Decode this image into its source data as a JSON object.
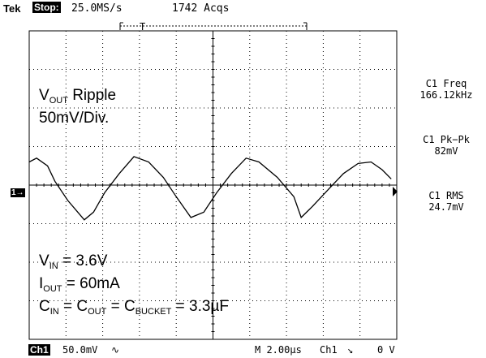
{
  "header": {
    "brand": "Tek",
    "run_state": "Stop:",
    "sample_rate": "25.0MS/s",
    "acquisitions": "1742 Acqs",
    "trigger_marker": "T"
  },
  "annotations": {
    "ripple_v": "V",
    "ripple_sub": "OUT",
    "ripple_text": " Ripple",
    "scale": "50mV/Div.",
    "vin_v": "V",
    "vin_sub": "IN",
    "vin_value": " = 3.6V",
    "iout_i": "I",
    "iout_sub": "OUT",
    "iout_value": " = 60mA",
    "cap_c1": "C",
    "cap_sub1": "IN",
    "cap_eq1": " = C",
    "cap_sub2": "OUT",
    "cap_eq2": " = C",
    "cap_sub3": "BUCKET",
    "cap_value": " = 3.3µF"
  },
  "measurements": [
    {
      "label": "C1 Freq",
      "value": "166.12kHz"
    },
    {
      "label": "C1 Pk−Pk",
      "value": "82mV"
    },
    {
      "label": "C1 RMS",
      "value": "24.7mV"
    }
  ],
  "footer": {
    "channel": "Ch1",
    "volts_per_div": "50.0mV",
    "bandwidth_symbol": "∿",
    "timebase": "M 2.00µs",
    "trigger_source": "Ch1",
    "trigger_slope": "↘",
    "trigger_level": "0 V"
  },
  "channel_marker": "1→",
  "colors": {
    "background": "#ffffff",
    "trace": "#000000",
    "grid": "#000000"
  },
  "chart_data": {
    "type": "line",
    "title": "",
    "xlabel": "",
    "ylabel": "",
    "x_unit": "µs",
    "y_unit": "mV",
    "xlim": [
      -10,
      10
    ],
    "ylim": [
      -200,
      200
    ],
    "grid": true,
    "series": [
      {
        "values_note": "",
        "x": [
          -10.0,
          -9.6,
          -9.0,
          -8.6,
          -7.9,
          -7.0,
          -6.5,
          -5.9,
          -5.1,
          -4.3,
          -3.5,
          -2.7,
          -2.0,
          -1.2,
          -0.5,
          0.2,
          1.0,
          1.8,
          2.5,
          3.5,
          4.4,
          4.8,
          5.4,
          6.3,
          7.1,
          7.9,
          8.6,
          9.2,
          9.7
        ],
        "y": [
          30,
          35,
          25,
          5,
          -20,
          -45,
          -35,
          -10,
          15,
          37,
          30,
          10,
          -15,
          -42,
          -35,
          -10,
          15,
          35,
          30,
          10,
          -15,
          -42,
          -28,
          -5,
          15,
          28,
          30,
          20,
          8
        ]
      }
    ]
  }
}
